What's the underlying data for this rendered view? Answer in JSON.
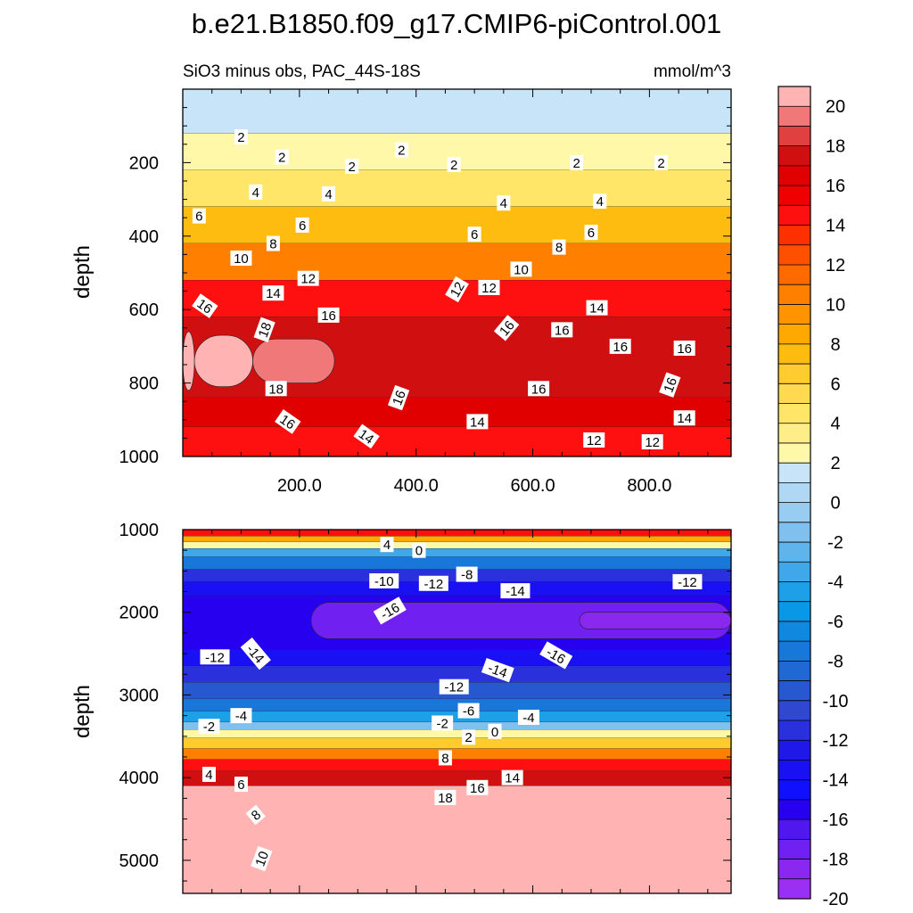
{
  "chart_data": [
    {
      "type": "contour",
      "title": "b.e21.B1850.f09_g17.CMIP6-piControl.001",
      "subtitle": "SiO3 minus obs, PAC_44S-18S",
      "units": "mmol/m^3",
      "xlabel": "",
      "ylabel": "depth",
      "xlim": [
        0,
        940
      ],
      "ylim": [
        1000,
        0
      ],
      "xticks": [
        200,
        400,
        600,
        800
      ],
      "xtick_labels": [
        "200.0",
        "400.0",
        "600.0",
        "800.0"
      ],
      "yticks": [
        200,
        400,
        600,
        800,
        1000
      ],
      "ytick_labels": [
        "200",
        "400",
        "600",
        "800",
        "1000"
      ],
      "bands": [
        {
          "top": 0,
          "bottom": 120,
          "value": 1
        },
        {
          "top": 120,
          "bottom": 220,
          "value": 2
        },
        {
          "top": 220,
          "bottom": 320,
          "value": 4
        },
        {
          "top": 320,
          "bottom": 420,
          "value": 7
        },
        {
          "top": 420,
          "bottom": 520,
          "value": 10
        },
        {
          "top": 520,
          "bottom": 620,
          "value": 14
        },
        {
          "top": 620,
          "bottom": 840,
          "value": 17
        },
        {
          "top": 840,
          "bottom": 920,
          "value": 16
        },
        {
          "top": 920,
          "bottom": 1000,
          "value": 14
        }
      ],
      "core": [
        {
          "x0": 0,
          "x1": 20,
          "top": 660,
          "bottom": 820,
          "value": 20.5
        },
        {
          "x0": 20,
          "x1": 120,
          "top": 670,
          "bottom": 810,
          "value": 19.5
        },
        {
          "x0": 120,
          "x1": 260,
          "top": 680,
          "bottom": 800,
          "value": 18.5
        }
      ],
      "contour_labels": [
        {
          "x": 100,
          "y": 130,
          "text": "2",
          "rot": 0
        },
        {
          "x": 170,
          "y": 185,
          "text": "2",
          "rot": 0
        },
        {
          "x": 375,
          "y": 165,
          "text": "2",
          "rot": 0
        },
        {
          "x": 290,
          "y": 210,
          "text": "2",
          "rot": 0
        },
        {
          "x": 465,
          "y": 205,
          "text": "2",
          "rot": 0
        },
        {
          "x": 675,
          "y": 200,
          "text": "2",
          "rot": 0
        },
        {
          "x": 820,
          "y": 200,
          "text": "2",
          "rot": 0
        },
        {
          "x": 125,
          "y": 280,
          "text": "4",
          "rot": 0
        },
        {
          "x": 250,
          "y": 285,
          "text": "4",
          "rot": 0
        },
        {
          "x": 550,
          "y": 310,
          "text": "4",
          "rot": 0
        },
        {
          "x": 715,
          "y": 305,
          "text": "4",
          "rot": 0
        },
        {
          "x": 28,
          "y": 345,
          "text": "6",
          "rot": 0
        },
        {
          "x": 205,
          "y": 370,
          "text": "6",
          "rot": 0
        },
        {
          "x": 500,
          "y": 395,
          "text": "6",
          "rot": 0
        },
        {
          "x": 700,
          "y": 390,
          "text": "6",
          "rot": 0
        },
        {
          "x": 155,
          "y": 420,
          "text": "8",
          "rot": 0
        },
        {
          "x": 645,
          "y": 430,
          "text": "8",
          "rot": 0
        },
        {
          "x": 100,
          "y": 460,
          "text": "10",
          "rot": 0
        },
        {
          "x": 580,
          "y": 490,
          "text": "10",
          "rot": 0
        },
        {
          "x": 215,
          "y": 515,
          "text": "12",
          "rot": 0
        },
        {
          "x": 470,
          "y": 545,
          "text": "12",
          "rot": -60
        },
        {
          "x": 525,
          "y": 540,
          "text": "12",
          "rot": 0
        },
        {
          "x": 155,
          "y": 555,
          "text": "14",
          "rot": 0
        },
        {
          "x": 710,
          "y": 595,
          "text": "14",
          "rot": 0
        },
        {
          "x": 38,
          "y": 590,
          "text": "16",
          "rot": 35
        },
        {
          "x": 250,
          "y": 615,
          "text": "16",
          "rot": 0
        },
        {
          "x": 555,
          "y": 650,
          "text": "16",
          "rot": -50
        },
        {
          "x": 650,
          "y": 655,
          "text": "16",
          "rot": 0
        },
        {
          "x": 750,
          "y": 700,
          "text": "16",
          "rot": 0
        },
        {
          "x": 860,
          "y": 705,
          "text": "16",
          "rot": 0
        },
        {
          "x": 140,
          "y": 655,
          "text": "18",
          "rot": -70
        },
        {
          "x": 160,
          "y": 815,
          "text": "18",
          "rot": 0
        },
        {
          "x": 370,
          "y": 840,
          "text": "16",
          "rot": -70
        },
        {
          "x": 610,
          "y": 815,
          "text": "16",
          "rot": 0
        },
        {
          "x": 835,
          "y": 805,
          "text": "16",
          "rot": -70
        },
        {
          "x": 180,
          "y": 905,
          "text": "16",
          "rot": 35
        },
        {
          "x": 315,
          "y": 945,
          "text": "14",
          "rot": 35
        },
        {
          "x": 505,
          "y": 905,
          "text": "14",
          "rot": 0
        },
        {
          "x": 860,
          "y": 895,
          "text": "14",
          "rot": 0
        },
        {
          "x": 705,
          "y": 955,
          "text": "12",
          "rot": 0
        },
        {
          "x": 805,
          "y": 960,
          "text": "12",
          "rot": 0
        }
      ]
    },
    {
      "type": "contour",
      "xlabel": "",
      "ylabel": "depth",
      "xlim": [
        0,
        940
      ],
      "ylim": [
        5400,
        1000
      ],
      "yticks": [
        1000,
        2000,
        3000,
        4000,
        5000
      ],
      "ytick_labels": [
        "1000",
        "2000",
        "3000",
        "4000",
        "5000"
      ],
      "bands": [
        {
          "top": 1000,
          "bottom": 1080,
          "value": 14
        },
        {
          "top": 1080,
          "bottom": 1150,
          "value": 8
        },
        {
          "top": 1150,
          "bottom": 1230,
          "value": 2
        },
        {
          "top": 1230,
          "bottom": 1330,
          "value": -4
        },
        {
          "top": 1330,
          "bottom": 1480,
          "value": -8
        },
        {
          "top": 1480,
          "bottom": 1630,
          "value": -12
        },
        {
          "top": 1630,
          "bottom": 1800,
          "value": -14
        },
        {
          "top": 1800,
          "bottom": 2450,
          "value": -16
        },
        {
          "top": 2450,
          "bottom": 2650,
          "value": -14
        },
        {
          "top": 2650,
          "bottom": 2850,
          "value": -12
        },
        {
          "top": 2850,
          "bottom": 3050,
          "value": -10
        },
        {
          "top": 3050,
          "bottom": 3200,
          "value": -8
        },
        {
          "top": 3200,
          "bottom": 3330,
          "value": -5
        },
        {
          "top": 3330,
          "bottom": 3420,
          "value": -2
        },
        {
          "top": 3420,
          "bottom": 3520,
          "value": 2
        },
        {
          "top": 3520,
          "bottom": 3650,
          "value": 6
        },
        {
          "top": 3650,
          "bottom": 3780,
          "value": 10
        },
        {
          "top": 3780,
          "bottom": 3920,
          "value": 14
        },
        {
          "top": 3920,
          "bottom": 4100,
          "value": 17
        },
        {
          "top": 4100,
          "bottom": 5400,
          "value": 20.5
        }
      ],
      "core": [
        {
          "x0": 220,
          "x1": 940,
          "top": 1880,
          "bottom": 2320,
          "value": -18
        },
        {
          "x0": 680,
          "x1": 940,
          "top": 2000,
          "bottom": 2200,
          "value": -19
        }
      ],
      "contour_labels": [
        {
          "x": 350,
          "y": 1180,
          "text": "4",
          "rot": 0
        },
        {
          "x": 405,
          "y": 1250,
          "text": "0",
          "rot": 0
        },
        {
          "x": 345,
          "y": 1620,
          "text": "-10",
          "rot": 0
        },
        {
          "x": 430,
          "y": 1650,
          "text": "-12",
          "rot": 0
        },
        {
          "x": 487,
          "y": 1540,
          "text": "-8",
          "rot": 0
        },
        {
          "x": 570,
          "y": 1740,
          "text": "-14",
          "rot": 0
        },
        {
          "x": 865,
          "y": 1630,
          "text": "-12",
          "rot": 0
        },
        {
          "x": 355,
          "y": 1980,
          "text": "-16",
          "rot": -30
        },
        {
          "x": 640,
          "y": 2520,
          "text": "-16",
          "rot": 30
        },
        {
          "x": 55,
          "y": 2540,
          "text": "-12",
          "rot": 0
        },
        {
          "x": 125,
          "y": 2500,
          "text": "-14",
          "rot": 50
        },
        {
          "x": 540,
          "y": 2700,
          "text": "-14",
          "rot": 20
        },
        {
          "x": 465,
          "y": 2900,
          "text": "-12",
          "rot": 0
        },
        {
          "x": 490,
          "y": 3190,
          "text": "-6",
          "rot": 0
        },
        {
          "x": 100,
          "y": 3250,
          "text": "-4",
          "rot": 0
        },
        {
          "x": 45,
          "y": 3380,
          "text": "-2",
          "rot": 0
        },
        {
          "x": 445,
          "y": 3340,
          "text": "-2",
          "rot": 0
        },
        {
          "x": 593,
          "y": 3270,
          "text": "-4",
          "rot": 0
        },
        {
          "x": 535,
          "y": 3440,
          "text": "0",
          "rot": 0
        },
        {
          "x": 490,
          "y": 3510,
          "text": "2",
          "rot": 0
        },
        {
          "x": 450,
          "y": 3760,
          "text": "8",
          "rot": 0
        },
        {
          "x": 45,
          "y": 3960,
          "text": "4",
          "rot": 0
        },
        {
          "x": 100,
          "y": 4080,
          "text": "6",
          "rot": 0
        },
        {
          "x": 565,
          "y": 4000,
          "text": "14",
          "rot": 0
        },
        {
          "x": 505,
          "y": 4120,
          "text": "16",
          "rot": 0
        },
        {
          "x": 450,
          "y": 4240,
          "text": "18",
          "rot": 0
        },
        {
          "x": 125,
          "y": 4450,
          "text": "8",
          "rot": -40
        },
        {
          "x": 135,
          "y": 4980,
          "text": "10",
          "rot": -70
        }
      ]
    }
  ],
  "colorbar": {
    "labels": [
      "20",
      "18",
      "16",
      "14",
      "12",
      "10",
      "8",
      "6",
      "4",
      "2",
      "0",
      "-2",
      "-4",
      "-6",
      "-8",
      "-10",
      "-12",
      "-14",
      "-16",
      "-18",
      "-20"
    ],
    "levels": [
      20,
      19,
      18,
      17,
      16,
      15,
      14,
      13,
      12,
      11,
      10,
      9,
      8,
      7,
      6,
      5,
      4,
      3,
      2,
      1,
      0,
      -1,
      -2,
      -3,
      -4,
      -5,
      -6,
      -7,
      -8,
      -9,
      -10,
      -11,
      -12,
      -13,
      -14,
      -15,
      -16,
      -17,
      -18,
      -19,
      -20
    ],
    "colors": [
      "#ffb3b3",
      "#f07878",
      "#e04040",
      "#d01010",
      "#e00000",
      "#f00000",
      "#ff1010",
      "#ff3000",
      "#ff5000",
      "#ff6a00",
      "#ff8000",
      "#ff9400",
      "#ffa800",
      "#ffbc10",
      "#ffcc30",
      "#ffda50",
      "#ffe668",
      "#ffee88",
      "#fff8a8",
      "#c8e4f8",
      "#b0d8f4",
      "#98ccf0",
      "#80c0ee",
      "#60b4ec",
      "#40a8ea",
      "#1ea0e8",
      "#0898e6",
      "#1088e0",
      "#1878da",
      "#2068d4",
      "#2858d0",
      "#3048d0",
      "#2a30dc",
      "#2018e8",
      "#1a10f4",
      "#1010ff",
      "#2800f0",
      "#5018ee",
      "#7020f0",
      "#8a28f0",
      "#9a30f4"
    ]
  }
}
